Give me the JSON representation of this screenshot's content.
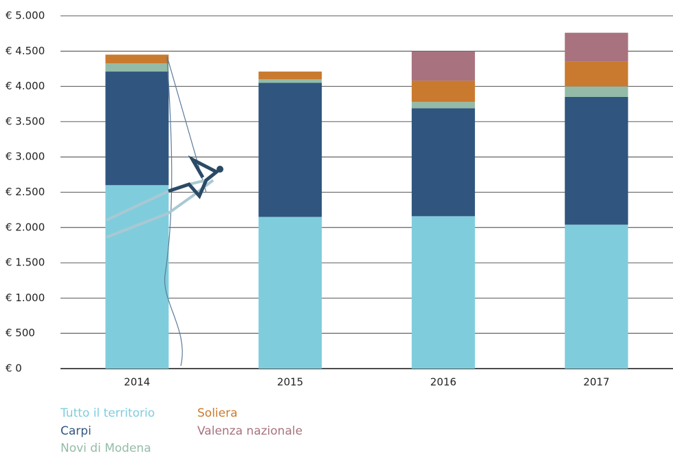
{
  "chart_data": {
    "type": "stacked_bar",
    "categories": [
      "2014",
      "2015",
      "2016",
      "2017"
    ],
    "series": [
      {
        "name": "Tutto il territorio",
        "color": "#7fcddc",
        "values": [
          2600,
          2150,
          2160,
          2040
        ]
      },
      {
        "name": "Carpi",
        "color": "#30557f",
        "values": [
          1610,
          1900,
          1530,
          1810
        ]
      },
      {
        "name": "Novi di Modena",
        "color": "#94bba8",
        "values": [
          115,
          50,
          90,
          150
        ]
      },
      {
        "name": "Soliera",
        "color": "#c97a2e",
        "values": [
          125,
          110,
          300,
          350
        ]
      },
      {
        "name": "Valenza nazionale",
        "color": "#a8727f",
        "values": [
          0,
          0,
          420,
          410
        ]
      }
    ],
    "ylim": [
      0,
      5000
    ],
    "yticks": [
      {
        "value": 0,
        "label": "€ 0"
      },
      {
        "value": 500,
        "label": "€ 500"
      },
      {
        "value": 1000,
        "label": "€ 1.000"
      },
      {
        "value": 1500,
        "label": "€ 1.500"
      },
      {
        "value": 2000,
        "label": "€ 2.000"
      },
      {
        "value": 2500,
        "label": "€ 2.500"
      },
      {
        "value": 3000,
        "label": "€ 3.000"
      },
      {
        "value": 3500,
        "label": "€ 3.500"
      },
      {
        "value": 4000,
        "label": "€ 4.000"
      },
      {
        "value": 4500,
        "label": "€ 4.500"
      },
      {
        "value": 5000,
        "label": "€ 5.000"
      }
    ],
    "grid": true
  }
}
